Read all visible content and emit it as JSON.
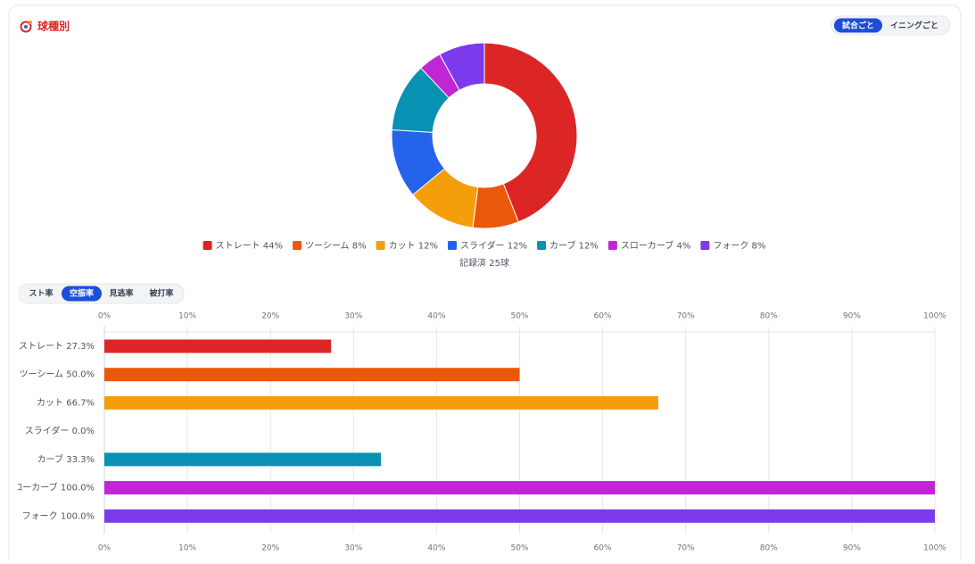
{
  "header": {
    "title": "球種別",
    "view_toggle": [
      "試合ごと",
      "イニングごと"
    ]
  },
  "metric_tabs": [
    "スト率",
    "空振率",
    "見逃率",
    "被打率"
  ],
  "chart_data": [
    {
      "type": "pie",
      "donut": true,
      "categories": [
        "ストレート",
        "ツーシーム",
        "カット",
        "スライダー",
        "カーブ",
        "スローカーブ",
        "フォーク"
      ],
      "values": [
        44,
        8,
        12,
        12,
        12,
        4,
        8
      ],
      "value_labels": [
        "44%",
        "8%",
        "12%",
        "12%",
        "12%",
        "4%",
        "8%"
      ],
      "colors": [
        "#dc2626",
        "#ea580c",
        "#f59e0b",
        "#2563eb",
        "#0891b2",
        "#c026d3",
        "#7c3aed"
      ],
      "note": "記録済 25球"
    },
    {
      "type": "bar",
      "orientation": "horizontal",
      "categories": [
        "ストレート",
        "ツーシーム",
        "カット",
        "スライダー",
        "カーブ",
        "スローカーブ",
        "フォーク"
      ],
      "values": [
        27.3,
        50.0,
        66.7,
        0.0,
        33.3,
        100.0,
        100.0
      ],
      "value_labels": [
        "27.3%",
        "50.0%",
        "66.7%",
        "0.0%",
        "33.3%",
        "100.0%",
        "100.0%"
      ],
      "colors": [
        "#dc2626",
        "#ea580c",
        "#f59e0b",
        "#2563eb",
        "#0891b2",
        "#c026d3",
        "#7c3aed"
      ],
      "xlim": [
        0,
        100
      ],
      "xticks": [
        {
          "value": 0,
          "label": "0%"
        },
        {
          "value": 10,
          "label": "10%"
        },
        {
          "value": 20,
          "label": "20%"
        },
        {
          "value": 30,
          "label": "30%"
        },
        {
          "value": 40,
          "label": "40%"
        },
        {
          "value": 50,
          "label": "50%"
        },
        {
          "value": 60,
          "label": "60%"
        },
        {
          "value": 70,
          "label": "70%"
        },
        {
          "value": 80,
          "label": "80%"
        },
        {
          "value": 90,
          "label": "90%"
        },
        {
          "value": 100,
          "label": "100%"
        }
      ],
      "grid": true
    }
  ]
}
